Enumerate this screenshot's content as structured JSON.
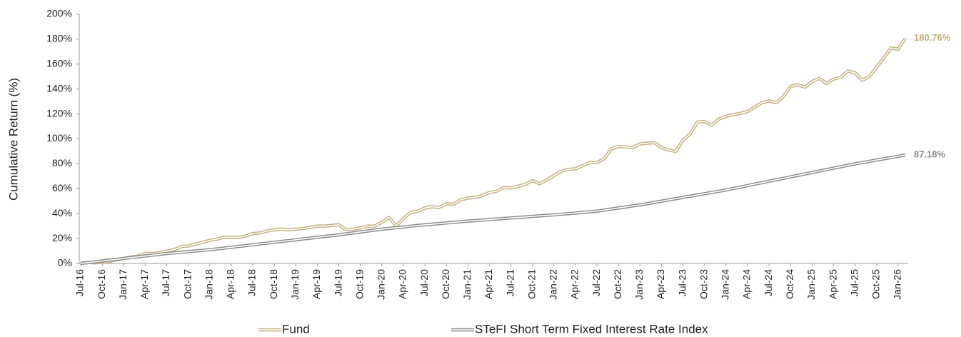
{
  "chart_data": {
    "type": "line",
    "y_label": "Cumulative Return (%)",
    "categories": [
      "Jul-16",
      null,
      null,
      "Oct-16",
      null,
      null,
      "Jan-17",
      null,
      null,
      "Apr-17",
      null,
      null,
      "Jul-17",
      null,
      null,
      "Oct-17",
      null,
      null,
      "Jan-18",
      null,
      null,
      "Apr-18",
      null,
      null,
      "Jul-18",
      null,
      null,
      "Oct-18",
      null,
      null,
      "Jan-19",
      null,
      null,
      "Apr-19",
      null,
      null,
      "Jul-19",
      null,
      null,
      "Oct-19",
      null,
      null,
      "Jan-20",
      null,
      null,
      "Apr-20",
      null,
      null,
      "Jul-20",
      null,
      null,
      "Oct-20",
      null,
      null,
      "Jan-21",
      null,
      null,
      "Apr-21",
      null,
      null,
      "Jul-21",
      null,
      null,
      "Oct-21",
      null,
      null,
      "Jan-22",
      null,
      null,
      "Apr-22",
      null,
      null,
      "Jul-22",
      null,
      null,
      "Oct-22",
      null,
      null,
      "Jan-23",
      null,
      null,
      "Apr-23",
      null,
      null,
      "Jul-23",
      null,
      null,
      "Oct-23",
      null,
      null,
      "Jan-24",
      null,
      null,
      "Apr-24",
      null,
      null,
      "Jul-24",
      null,
      null,
      "Oct-24",
      null,
      null,
      "Jan-25",
      null,
      null,
      "Apr-25",
      null,
      null,
      "Jul-25",
      null,
      null,
      "Oct-25",
      null,
      null,
      "Jan-26",
      null
    ],
    "series": [
      {
        "name": "Fund",
        "color": "#c2b07c",
        "end_label": "180.76%",
        "values": [
          0,
          0.8,
          0.5,
          1,
          1.5,
          3,
          4,
          5,
          6,
          8,
          8,
          8.5,
          10,
          11,
          13.5,
          14,
          15.5,
          17,
          18.5,
          19.5,
          21,
          21,
          21,
          22,
          24,
          24.5,
          26,
          27,
          27.5,
          27,
          27.5,
          28,
          29,
          30,
          30,
          30.5,
          31,
          27,
          27.5,
          28.5,
          30,
          30,
          33,
          37,
          30,
          36,
          41,
          42,
          44.5,
          45.5,
          45,
          48,
          47.5,
          51,
          52.5,
          53,
          54.5,
          57,
          58,
          61,
          60.5,
          62,
          63.5,
          66.5,
          64,
          67,
          70.5,
          74,
          75.5,
          76,
          78.5,
          81,
          81,
          84,
          92,
          94,
          93.5,
          93,
          96,
          96.5,
          97,
          93,
          91,
          90,
          99,
          104,
          113.5,
          114,
          111,
          116,
          118,
          119.5,
          120.5,
          122,
          125.5,
          129,
          130.5,
          129,
          134,
          142,
          143.5,
          141.5,
          146,
          148.5,
          144.5,
          148,
          149.5,
          154.5,
          153,
          147,
          150,
          157.5,
          165,
          173,
          172,
          180.76
        ]
      },
      {
        "name": "STeFI Short Term Fixed Interest Rate Index",
        "color": "#8a8a8a",
        "end_label": "87.18%",
        "values": [
          0,
          0.7,
          1.3,
          2,
          2.7,
          3.3,
          4,
          4.7,
          5.3,
          6,
          6.7,
          7.3,
          8,
          8.5,
          9,
          9.5,
          10,
          10.5,
          11,
          11.7,
          12.3,
          13,
          13.7,
          14.3,
          15,
          15.7,
          16.3,
          17,
          17.7,
          18.3,
          19,
          19.7,
          20.3,
          21,
          21.7,
          22.3,
          23,
          23.8,
          24.5,
          25.3,
          26,
          26.8,
          27.5,
          28.1,
          28.7,
          29.3,
          29.9,
          30.5,
          31,
          31.5,
          32,
          32.5,
          33,
          33.5,
          34,
          34.4,
          34.8,
          35.3,
          35.7,
          36.1,
          36.5,
          36.9,
          37.3,
          37.8,
          38.2,
          38.6,
          39,
          39.5,
          40,
          40.5,
          41,
          41.5,
          42,
          42.8,
          43.7,
          44.5,
          45.3,
          46.2,
          47,
          48,
          49,
          50,
          51,
          52,
          53,
          54,
          55,
          56,
          57,
          58,
          59,
          60.2,
          61.3,
          62.5,
          63.7,
          64.8,
          66,
          67.2,
          68.3,
          69.5,
          70.7,
          71.8,
          73,
          74.2,
          75.3,
          76.5,
          77.7,
          78.8,
          80,
          81,
          82,
          83,
          84,
          85,
          86,
          87.18
        ]
      }
    ],
    "ylim": [
      0,
      200
    ],
    "yticks": [
      {
        "value": 0,
        "label": "0%"
      },
      {
        "value": 20,
        "label": "20%"
      },
      {
        "value": 40,
        "label": "40%"
      },
      {
        "value": 60,
        "label": "60%"
      },
      {
        "value": 80,
        "label": "80%"
      },
      {
        "value": 100,
        "label": "100%"
      },
      {
        "value": 120,
        "label": "120%"
      },
      {
        "value": 140,
        "label": "140%"
      },
      {
        "value": 160,
        "label": "160%"
      },
      {
        "value": 180,
        "label": "180%"
      },
      {
        "value": 200,
        "label": "200%"
      }
    ],
    "grid": false
  }
}
